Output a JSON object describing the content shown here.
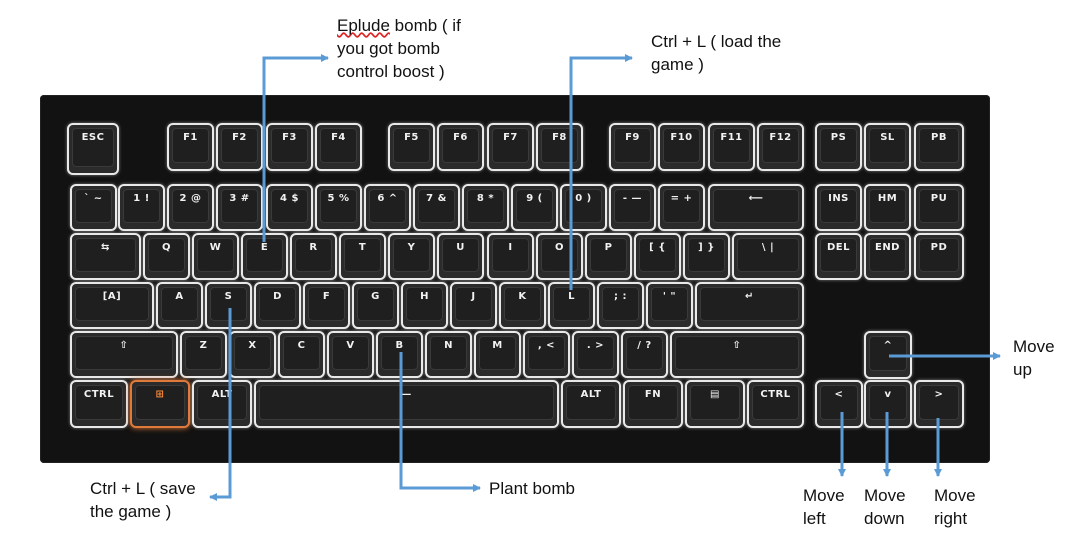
{
  "colors": {
    "arrow": "#5b9bd5",
    "key_border": "#e9e9e9",
    "board": "#121212",
    "windows_glow": "#e07a3a"
  },
  "keys": [
    {
      "label": "ESC"
    },
    {
      "label": "F1"
    },
    {
      "label": "F2"
    },
    {
      "label": "F3"
    },
    {
      "label": "F4"
    },
    {
      "label": "F5"
    },
    {
      "label": "F6"
    },
    {
      "label": "F7"
    },
    {
      "label": "F8"
    },
    {
      "label": "F9"
    },
    {
      "label": "F10"
    },
    {
      "label": "F11"
    },
    {
      "label": "F12"
    },
    {
      "label": "PS"
    },
    {
      "label": "SL"
    },
    {
      "label": "PB"
    },
    {
      "label": "` ~"
    },
    {
      "label": "1 !"
    },
    {
      "label": "2 @"
    },
    {
      "label": "3 #"
    },
    {
      "label": "4 $"
    },
    {
      "label": "5 %"
    },
    {
      "label": "6 ^"
    },
    {
      "label": "7 &"
    },
    {
      "label": "8 *"
    },
    {
      "label": "9 ("
    },
    {
      "label": "0 )"
    },
    {
      "label": "- —"
    },
    {
      "label": "= +"
    },
    {
      "label": "⟵"
    },
    {
      "label": "INS"
    },
    {
      "label": "HM"
    },
    {
      "label": "PU"
    },
    {
      "label": "⇆"
    },
    {
      "label": "Q"
    },
    {
      "label": "W"
    },
    {
      "label": "E"
    },
    {
      "label": "R"
    },
    {
      "label": "T"
    },
    {
      "label": "Y"
    },
    {
      "label": "U"
    },
    {
      "label": "I"
    },
    {
      "label": "O"
    },
    {
      "label": "P"
    },
    {
      "label": "[ {"
    },
    {
      "label": "] }"
    },
    {
      "label": "\\ |"
    },
    {
      "label": "DEL"
    },
    {
      "label": "END"
    },
    {
      "label": "PD"
    },
    {
      "label": "[A]"
    },
    {
      "label": "A"
    },
    {
      "label": "S"
    },
    {
      "label": "D"
    },
    {
      "label": "F"
    },
    {
      "label": "G"
    },
    {
      "label": "H"
    },
    {
      "label": "J"
    },
    {
      "label": "K"
    },
    {
      "label": "L"
    },
    {
      "label": "; :"
    },
    {
      "label": "' \""
    },
    {
      "label": "↵"
    },
    {
      "label": "⇧"
    },
    {
      "label": "Z"
    },
    {
      "label": "X"
    },
    {
      "label": "C"
    },
    {
      "label": "V"
    },
    {
      "label": "B"
    },
    {
      "label": "N"
    },
    {
      "label": "M"
    },
    {
      "label": ", <"
    },
    {
      "label": ". >"
    },
    {
      "label": "/ ?"
    },
    {
      "label": "⇧"
    },
    {
      "label": "^"
    },
    {
      "label": "CTRL"
    },
    {
      "label": "⊞"
    },
    {
      "label": "ALT"
    },
    {
      "label": "—"
    },
    {
      "label": "ALT"
    },
    {
      "label": "FN"
    },
    {
      "label": "▤"
    },
    {
      "label": "CTRL"
    },
    {
      "label": "<"
    },
    {
      "label": "v"
    },
    {
      "label": ">"
    }
  ],
  "annotations": {
    "explode": {
      "word": "Eplude",
      "rest_line1": " bomb ( if",
      "line2": "you got bomb",
      "line3": "control boost )"
    },
    "load": {
      "line1": "Ctrl + L ( load the",
      "line2": "game )"
    },
    "save": {
      "line1": "Ctrl + L ( save",
      "line2": "the game )"
    },
    "plant": {
      "line1": "Plant bomb"
    },
    "move_up": {
      "line1": "Move",
      "line2": "up"
    },
    "move_left": {
      "line1": "Move",
      "line2": "left"
    },
    "move_down": {
      "line1": "Move",
      "line2": "down"
    },
    "move_right": {
      "line1": "Move",
      "line2": "right"
    }
  }
}
